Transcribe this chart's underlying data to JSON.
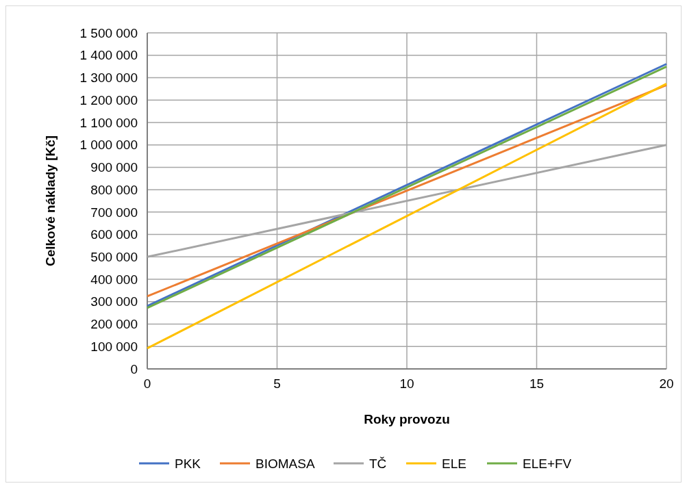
{
  "chart_data": {
    "type": "line",
    "xlabel": "Roky provozu",
    "ylabel": "Celkové náklady [Kč]",
    "x": [
      0,
      20
    ],
    "series": [
      {
        "name": "PKK",
        "color": "#4472c4",
        "values": [
          281000,
          1361000
        ]
      },
      {
        "name": "BIOMASA",
        "color": "#ed7d31",
        "values": [
          324000,
          1267000
        ]
      },
      {
        "name": "TČ",
        "color": "#a5a5a5",
        "values": [
          500000,
          1000000
        ]
      },
      {
        "name": "ELE",
        "color": "#ffc000",
        "values": [
          92000,
          1273000
        ]
      },
      {
        "name": "ELE+FV",
        "color": "#70ad47",
        "values": [
          272000,
          1349000
        ]
      }
    ],
    "xlim": [
      0,
      20
    ],
    "xticks": [
      0,
      5,
      10,
      15,
      20
    ],
    "ylim": [
      0,
      1500000
    ],
    "yticks": [
      {
        "value": 0,
        "label": "0"
      },
      {
        "value": 100000,
        "label": "100 000"
      },
      {
        "value": 200000,
        "label": "200 000"
      },
      {
        "value": 300000,
        "label": "300 000"
      },
      {
        "value": 400000,
        "label": "400 000"
      },
      {
        "value": 500000,
        "label": "500 000"
      },
      {
        "value": 600000,
        "label": "600 000"
      },
      {
        "value": 700000,
        "label": "700 000"
      },
      {
        "value": 800000,
        "label": "800 000"
      },
      {
        "value": 900000,
        "label": "900 000"
      },
      {
        "value": 1000000,
        "label": "1 000 000"
      },
      {
        "value": 1100000,
        "label": "1 100 000"
      },
      {
        "value": 1200000,
        "label": "1 200 000"
      },
      {
        "value": 1300000,
        "label": "1 300 000"
      },
      {
        "value": 1400000,
        "label": "1 400 000"
      },
      {
        "value": 1500000,
        "label": "1 500 000"
      }
    ],
    "grid": true,
    "legend": "bottom",
    "marker": "none",
    "line_style": "solid"
  }
}
